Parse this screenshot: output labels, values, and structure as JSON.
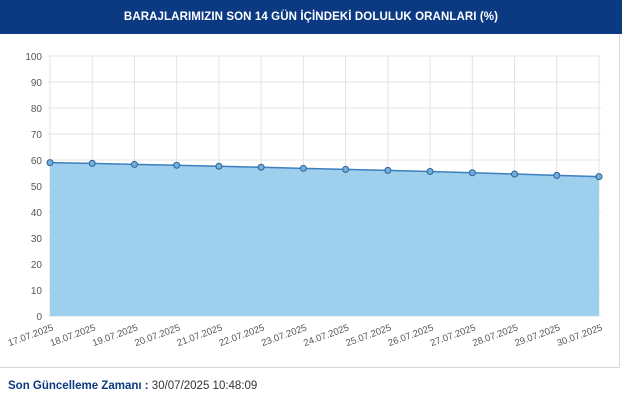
{
  "header": {
    "title": "BARAJLARIMIZIN SON 14 GÜN İÇİNDEKİ DOLULUK ORANLARI (%)"
  },
  "footer": {
    "label": "Son Güncelleme Zamanı :",
    "value": "30/07/2025 10:48:09"
  },
  "colors": {
    "header_bg": "#0b3a82",
    "area_fill": "#9ed0ee",
    "line": "#3d7fbf",
    "marker_fill": "#6fb0dd",
    "marker_stroke": "#2e5f94",
    "grid": "#e3e3e3"
  },
  "chart_data": {
    "type": "area",
    "title": "BARAJLARIMIZIN SON 14 GÜN İÇİNDEKİ DOLULUK ORANLARI (%)",
    "xlabel": "",
    "ylabel": "",
    "ylim": [
      0,
      100
    ],
    "yticks": [
      0,
      10,
      20,
      30,
      40,
      50,
      60,
      70,
      80,
      90,
      100
    ],
    "grid": true,
    "legend": "none",
    "categories": [
      "17.07.2025",
      "18.07.2025",
      "19.07.2025",
      "20.07.2025",
      "21.07.2025",
      "22.07.2025",
      "23.07.2025",
      "24.07.2025",
      "25.07.2025",
      "26.07.2025",
      "27.07.2025",
      "28.07.2025",
      "29.07.2025",
      "30.07.2025"
    ],
    "series": [
      {
        "values": [
          59.0,
          58.7,
          58.3,
          58.0,
          57.6,
          57.2,
          56.8,
          56.4,
          56.0,
          55.6,
          55.1,
          54.6,
          54.1,
          53.6
        ]
      }
    ]
  }
}
